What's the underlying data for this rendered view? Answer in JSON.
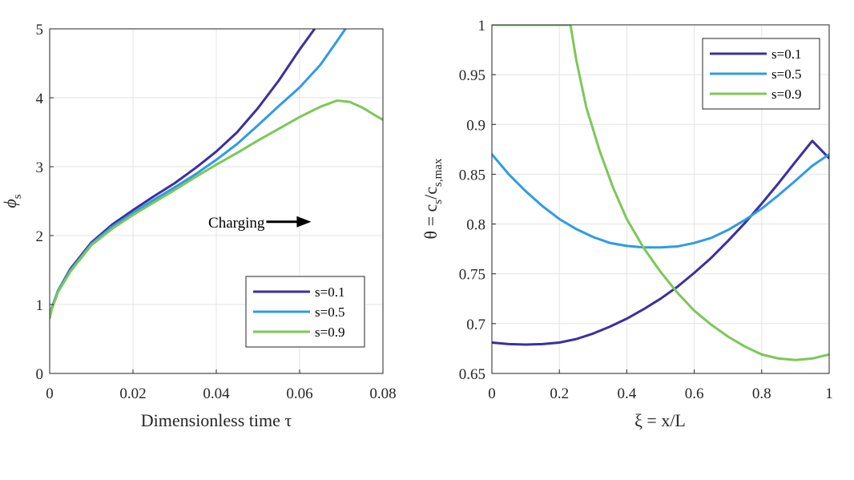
{
  "chart_data": [
    {
      "type": "line",
      "xlabel": "Dimensionless  time τ",
      "ylabel_main": "ϕ",
      "ylabel_sub": "s",
      "xlim": [
        0,
        0.08
      ],
      "ylim": [
        0,
        5
      ],
      "xticks": [
        "0",
        "0.02",
        "0.04",
        "0.06",
        "0.08"
      ],
      "xtick_values": [
        0,
        0.02,
        0.04,
        0.06,
        0.08
      ],
      "yticks": [
        "0",
        "1",
        "2",
        "3",
        "4",
        "5"
      ],
      "ytick_values": [
        0,
        1,
        2,
        3,
        4,
        5
      ],
      "grid": true,
      "legend_position": "bottom-right",
      "annotation": {
        "text": "Charging",
        "arrow": "right",
        "x": 0.052,
        "y": 2.2
      },
      "series": [
        {
          "name": "s=0.1",
          "color": "#3c2fa0",
          "points": [
            [
              0,
              0.82
            ],
            [
              0.0005,
              0.95
            ],
            [
              0.002,
              1.2
            ],
            [
              0.005,
              1.52
            ],
            [
              0.01,
              1.9
            ],
            [
              0.015,
              2.16
            ],
            [
              0.02,
              2.37
            ],
            [
              0.025,
              2.57
            ],
            [
              0.03,
              2.76
            ],
            [
              0.035,
              2.98
            ],
            [
              0.04,
              3.22
            ],
            [
              0.045,
              3.5
            ],
            [
              0.05,
              3.85
            ],
            [
              0.055,
              4.25
            ],
            [
              0.06,
              4.7
            ],
            [
              0.0636,
              5.0
            ]
          ]
        },
        {
          "name": "s=0.5",
          "color": "#2f9be6",
          "points": [
            [
              0,
              0.82
            ],
            [
              0.0005,
              0.95
            ],
            [
              0.002,
              1.2
            ],
            [
              0.005,
              1.5
            ],
            [
              0.01,
              1.88
            ],
            [
              0.015,
              2.13
            ],
            [
              0.02,
              2.33
            ],
            [
              0.025,
              2.52
            ],
            [
              0.03,
              2.7
            ],
            [
              0.035,
              2.89
            ],
            [
              0.04,
              3.1
            ],
            [
              0.045,
              3.33
            ],
            [
              0.05,
              3.6
            ],
            [
              0.055,
              3.88
            ],
            [
              0.06,
              4.15
            ],
            [
              0.065,
              4.48
            ],
            [
              0.0685,
              4.78
            ],
            [
              0.071,
              5.0
            ]
          ]
        },
        {
          "name": "s=0.9",
          "color": "#7cc856",
          "points": [
            [
              0,
              0.8
            ],
            [
              0.0005,
              0.93
            ],
            [
              0.002,
              1.18
            ],
            [
              0.005,
              1.48
            ],
            [
              0.01,
              1.86
            ],
            [
              0.015,
              2.1
            ],
            [
              0.02,
              2.3
            ],
            [
              0.025,
              2.48
            ],
            [
              0.03,
              2.66
            ],
            [
              0.035,
              2.85
            ],
            [
              0.04,
              3.03
            ],
            [
              0.045,
              3.2
            ],
            [
              0.05,
              3.38
            ],
            [
              0.055,
              3.55
            ],
            [
              0.06,
              3.72
            ],
            [
              0.065,
              3.87
            ],
            [
              0.069,
              3.96
            ],
            [
              0.072,
              3.94
            ],
            [
              0.075,
              3.86
            ],
            [
              0.078,
              3.75
            ],
            [
              0.08,
              3.68
            ]
          ]
        }
      ]
    },
    {
      "type": "line",
      "xlabel": "ξ = x/L",
      "ylabel": "θ = c_s/c_s,max",
      "ylabel_parts": {
        "pre": "θ = c",
        "sub1": "s",
        "mid": "/c",
        "sub2": "s,max"
      },
      "xlim": [
        0,
        1
      ],
      "ylim": [
        0.65,
        1
      ],
      "xticks": [
        "0",
        "0.2",
        "0.4",
        "0.6",
        "0.8",
        "1"
      ],
      "xtick_values": [
        0,
        0.2,
        0.4,
        0.6,
        0.8,
        1
      ],
      "yticks": [
        "0.65",
        "0.7",
        "0.75",
        "0.8",
        "0.85",
        "0.9",
        "0.95",
        "1"
      ],
      "ytick_values": [
        0.65,
        0.7,
        0.75,
        0.8,
        0.85,
        0.9,
        0.95,
        1
      ],
      "grid": true,
      "legend_position": "top-right",
      "series": [
        {
          "name": "s=0.1",
          "color": "#3c2fa0",
          "points": [
            [
              0,
              0.681
            ],
            [
              0.05,
              0.6795
            ],
            [
              0.1,
              0.679
            ],
            [
              0.15,
              0.6795
            ],
            [
              0.2,
              0.681
            ],
            [
              0.25,
              0.6845
            ],
            [
              0.3,
              0.69
            ],
            [
              0.35,
              0.697
            ],
            [
              0.4,
              0.705
            ],
            [
              0.45,
              0.7145
            ],
            [
              0.5,
              0.725
            ],
            [
              0.55,
              0.737
            ],
            [
              0.6,
              0.751
            ],
            [
              0.65,
              0.766
            ],
            [
              0.7,
              0.783
            ],
            [
              0.75,
              0.801
            ],
            [
              0.8,
              0.8205
            ],
            [
              0.85,
              0.841
            ],
            [
              0.9,
              0.8625
            ],
            [
              0.95,
              0.8835
            ],
            [
              1,
              0.866
            ]
          ]
        },
        {
          "name": "s=0.5",
          "color": "#2f9be6",
          "points": [
            [
              0,
              0.87
            ],
            [
              0.05,
              0.85
            ],
            [
              0.1,
              0.833
            ],
            [
              0.15,
              0.818
            ],
            [
              0.2,
              0.805
            ],
            [
              0.25,
              0.795
            ],
            [
              0.3,
              0.787
            ],
            [
              0.35,
              0.781
            ],
            [
              0.4,
              0.778
            ],
            [
              0.45,
              0.7765
            ],
            [
              0.5,
              0.7765
            ],
            [
              0.55,
              0.7775
            ],
            [
              0.6,
              0.781
            ],
            [
              0.65,
              0.786
            ],
            [
              0.7,
              0.794
            ],
            [
              0.75,
              0.804
            ],
            [
              0.8,
              0.8155
            ],
            [
              0.85,
              0.829
            ],
            [
              0.9,
              0.8435
            ],
            [
              0.95,
              0.8585
            ],
            [
              1,
              0.87
            ]
          ]
        },
        {
          "name": "s=0.9",
          "color": "#7cc856",
          "points": [
            [
              0,
              1.0
            ],
            [
              0.1,
              1.0
            ],
            [
              0.2,
              1.0
            ],
            [
              0.233,
              1.0
            ],
            [
              0.25,
              0.965
            ],
            [
              0.28,
              0.917
            ],
            [
              0.32,
              0.873
            ],
            [
              0.36,
              0.836
            ],
            [
              0.4,
              0.805
            ],
            [
              0.45,
              0.776
            ],
            [
              0.5,
              0.752
            ],
            [
              0.55,
              0.731
            ],
            [
              0.6,
              0.713
            ],
            [
              0.65,
              0.699
            ],
            [
              0.7,
              0.687
            ],
            [
              0.75,
              0.677
            ],
            [
              0.8,
              0.669
            ],
            [
              0.85,
              0.665
            ],
            [
              0.9,
              0.6635
            ],
            [
              0.95,
              0.665
            ],
            [
              1,
              0.669
            ]
          ]
        }
      ]
    }
  ]
}
